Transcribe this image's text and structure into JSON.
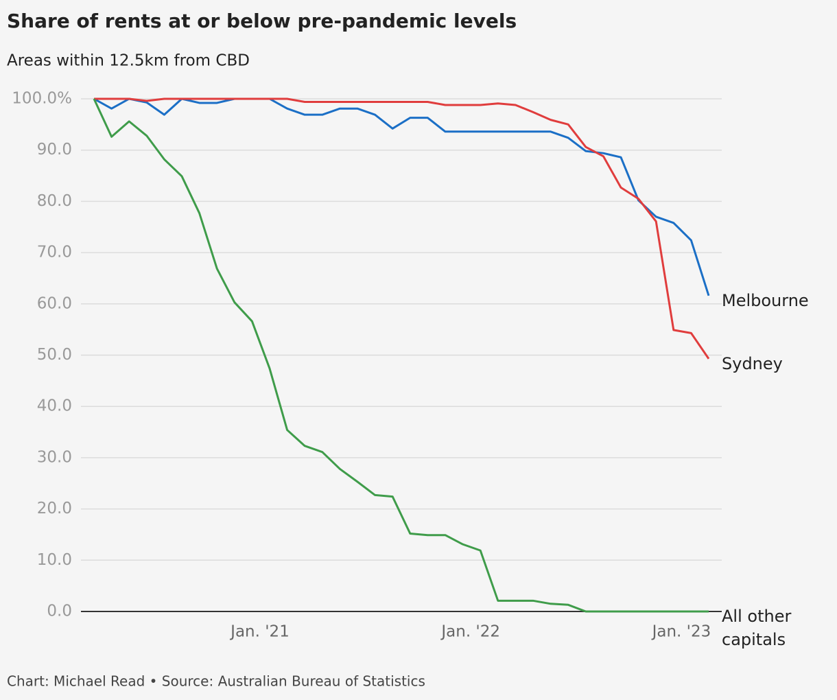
{
  "chart_data": {
    "type": "line",
    "title": "Share of rents at or below pre-pandemic levels",
    "subtitle": "Areas within 12.5km from CBD",
    "footer": "Chart: Michael Read • Source: Australian Bureau of Statistics",
    "x": [
      "2020-03",
      "2020-04",
      "2020-05",
      "2020-06",
      "2020-07",
      "2020-08",
      "2020-09",
      "2020-10",
      "2020-11",
      "2020-12",
      "2021-01",
      "2021-02",
      "2021-03",
      "2021-04",
      "2021-05",
      "2021-06",
      "2021-07",
      "2021-08",
      "2021-09",
      "2021-10",
      "2021-11",
      "2021-12",
      "2022-01",
      "2022-02",
      "2022-03",
      "2022-04",
      "2022-05",
      "2022-06",
      "2022-07",
      "2022-08",
      "2022-09",
      "2022-10",
      "2022-11",
      "2022-12",
      "2023-01",
      "2023-02"
    ],
    "xticks": [
      {
        "value": "2021-01",
        "label": "Jan. '21"
      },
      {
        "value": "2022-01",
        "label": "Jan. '22"
      },
      {
        "value": "2023-01",
        "label": "Jan. '23"
      }
    ],
    "ylim": [
      0,
      100
    ],
    "yticks": [
      {
        "value": 0,
        "label": "0.0"
      },
      {
        "value": 10,
        "label": "10.0"
      },
      {
        "value": 20,
        "label": "20.0"
      },
      {
        "value": 30,
        "label": "30.0"
      },
      {
        "value": 40,
        "label": "40.0"
      },
      {
        "value": 50,
        "label": "50.0"
      },
      {
        "value": 60,
        "label": "60.0"
      },
      {
        "value": 70,
        "label": "70.0"
      },
      {
        "value": 80,
        "label": "80.0"
      },
      {
        "value": 90,
        "label": "90.0"
      },
      {
        "value": 100,
        "label": "100.0%"
      }
    ],
    "grid": true,
    "series": [
      {
        "name": "Melbourne",
        "color": "#1b6fc6",
        "values": [
          100,
          98.1,
          100,
          99.3,
          96.9,
          100,
          99.2,
          99.2,
          100,
          100,
          100,
          98.1,
          96.9,
          96.9,
          98.1,
          98.1,
          96.9,
          94.2,
          96.3,
          96.3,
          93.6,
          93.6,
          93.6,
          93.6,
          93.6,
          93.6,
          93.6,
          92.4,
          89.8,
          89.4,
          88.6,
          80.2,
          77,
          75.8,
          72.4,
          61.6
        ]
      },
      {
        "name": "Sydney",
        "color": "#e03d3d",
        "values": [
          100,
          100,
          100,
          99.6,
          100,
          100,
          100,
          100,
          100,
          100,
          100,
          100,
          99.4,
          99.4,
          99.4,
          99.4,
          99.4,
          99.4,
          99.4,
          99.4,
          98.8,
          98.8,
          98.8,
          99.1,
          98.8,
          97.4,
          95.9,
          95,
          90.6,
          88.8,
          82.7,
          80.5,
          76.1,
          54.9,
          54.3,
          49.3
        ]
      },
      {
        "name": "All other capitals",
        "color": "#3f9c4a",
        "values": [
          100,
          92.6,
          95.6,
          92.8,
          88.2,
          84.9,
          77.7,
          66.9,
          60.3,
          56.6,
          47.4,
          35.4,
          32.3,
          31.1,
          27.8,
          25.3,
          22.7,
          22.4,
          15.2,
          14.9,
          14.9,
          13.1,
          11.9,
          2.1,
          2.1,
          2.1,
          1.5,
          1.3,
          0,
          0,
          0,
          0,
          0,
          0,
          0,
          0
        ]
      }
    ]
  }
}
